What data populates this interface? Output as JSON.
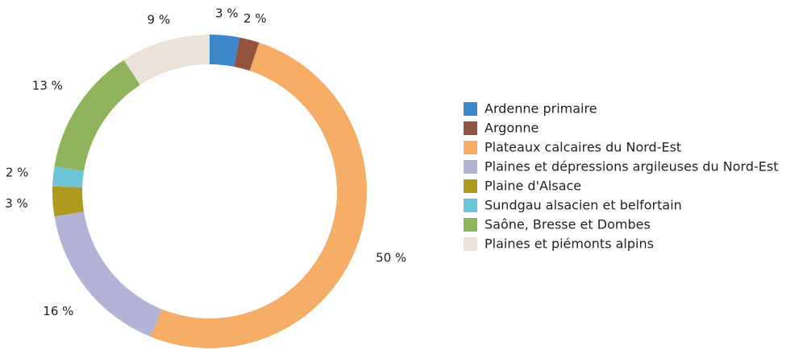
{
  "chart_data": {
    "type": "donut",
    "categories": [
      "Ardenne primaire",
      "Argonne",
      "Plateaux calcaires du Nord-Est",
      "Plaines et dépressions argileuses du Nord-Est",
      "Plaine d'Alsace",
      "Sundgau alsacien et belfortain",
      "Saône, Bresse et Dombes",
      "Plaines et piémonts alpins"
    ],
    "values": [
      3,
      2,
      50,
      16,
      3,
      2,
      13,
      9
    ],
    "value_labels": [
      "3 %",
      "2 %",
      "50 %",
      "16 %",
      "3 %",
      "2 %",
      "13 %",
      "9 %"
    ],
    "colors": [
      "#3d87c8",
      "#93543f",
      "#f6ad66",
      "#b3b3d7",
      "#ae9a1f",
      "#6cc5d6",
      "#8db35b",
      "#ebe2da"
    ],
    "legend": "right"
  }
}
